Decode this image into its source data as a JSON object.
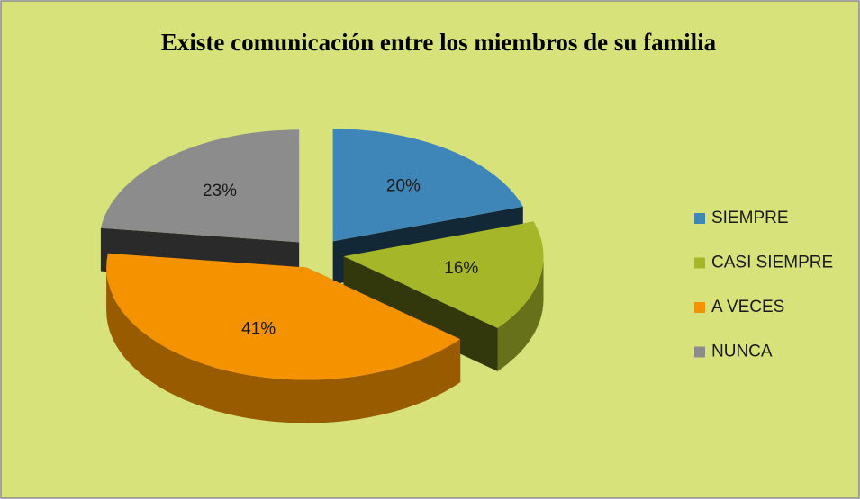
{
  "chart_data": {
    "type": "pie",
    "title": "Existe comunicación entre los miembros de su familia",
    "categories": [
      "SIEMPRE",
      "CASI SIEMPRE",
      "A VECES",
      "NUNCA"
    ],
    "values": [
      20,
      16,
      41,
      23
    ],
    "value_labels": [
      "20%",
      "16%",
      "41%",
      "23%"
    ],
    "colors": [
      "#3f86b8",
      "#a5b729",
      "#f59200",
      "#8c8c8c"
    ],
    "legend": "right"
  }
}
